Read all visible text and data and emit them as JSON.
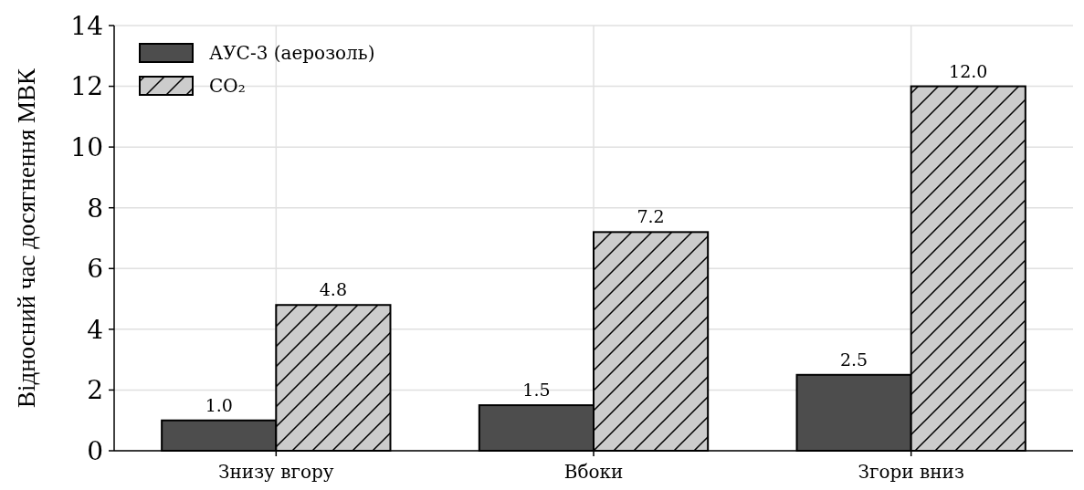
{
  "chart_data": {
    "type": "bar",
    "ylabel": "Відносний час досягнення МВК",
    "categories": [
      "Знизу вгору",
      "Вбоки",
      "Згори вниз"
    ],
    "series": [
      {
        "name": "АУС-3 (аерозоль)",
        "color": "#4d4d4d",
        "values": [
          1.0,
          1.5,
          2.5
        ]
      },
      {
        "name": "CO₂",
        "color": "#cccccc",
        "values": [
          4.8,
          7.2,
          12.0
        ]
      }
    ],
    "value_labels": [
      [
        "1.0",
        "1.5",
        "2.5"
      ],
      [
        "4.8",
        "7.2",
        "12.0"
      ]
    ],
    "ylim": [
      0,
      14
    ],
    "yticks": [
      0,
      2,
      4,
      6,
      8,
      10,
      12,
      14
    ],
    "grid": true,
    "legend": "top left"
  }
}
